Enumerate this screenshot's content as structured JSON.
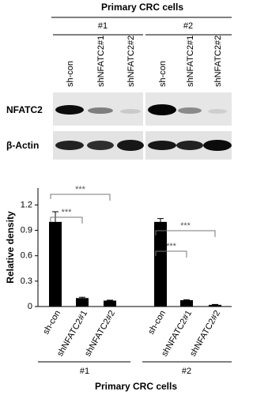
{
  "blot": {
    "title": "Primary CRC cells",
    "groups": [
      "#1",
      "#2"
    ],
    "lanes": [
      "sh-con",
      "shNFATC2#1",
      "shNFATC2#2"
    ],
    "rows": [
      "NFATC2",
      "β-Actin"
    ]
  },
  "chart_data": {
    "type": "bar",
    "ylabel": "Relative density",
    "xlabel": "Primary CRC cells",
    "groups": [
      "#1",
      "#2"
    ],
    "categories": [
      "sh-con",
      "shNFATC2#1",
      "shNFATC2#2",
      "sh-con",
      "shNFATC2#1",
      "shNFATC2#2"
    ],
    "values": [
      1.0,
      0.1,
      0.07,
      1.0,
      0.075,
      0.02
    ],
    "errors": [
      0.12,
      0.01,
      0.005,
      0.04,
      0.005,
      0.005
    ],
    "color": "#000000",
    "ylim": [
      0,
      1.4
    ],
    "yticks": [
      0,
      0.3,
      0.6,
      0.9,
      1.2
    ],
    "annotations": [
      "***",
      "***",
      "***",
      "***"
    ]
  }
}
